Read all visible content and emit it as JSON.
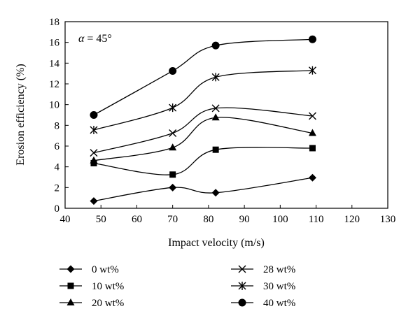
{
  "chart_data": {
    "type": "line",
    "xlabel": "Impact velocity (m/s)",
    "ylabel": "Erosion efficiency (%)",
    "xlim": [
      40,
      130
    ],
    "ylim": [
      0,
      18
    ],
    "xticks": [
      40,
      50,
      60,
      70,
      80,
      90,
      100,
      110,
      120,
      130
    ],
    "yticks": [
      0,
      2,
      4,
      6,
      8,
      10,
      12,
      14,
      16,
      18
    ],
    "annotation": "α = 45°",
    "grid": false,
    "legend_position": "bottom",
    "x": [
      48,
      70,
      82,
      109
    ],
    "series": [
      {
        "name": "0 wt%",
        "marker": "diamond",
        "values": [
          0.7,
          2.0,
          1.5,
          2.95
        ]
      },
      {
        "name": "10 wt%",
        "marker": "square",
        "values": [
          4.35,
          3.25,
          5.65,
          5.8
        ]
      },
      {
        "name": "20 wt%",
        "marker": "triangle",
        "values": [
          4.6,
          5.85,
          8.75,
          7.25
        ]
      },
      {
        "name": "28 wt%",
        "marker": "x",
        "values": [
          5.35,
          7.25,
          9.65,
          8.9
        ]
      },
      {
        "name": "30 wt%",
        "marker": "asterisk",
        "values": [
          7.55,
          9.7,
          12.65,
          13.3
        ]
      },
      {
        "name": "40 wt%",
        "marker": "circle",
        "values": [
          9.0,
          13.25,
          15.7,
          16.3
        ]
      }
    ]
  }
}
